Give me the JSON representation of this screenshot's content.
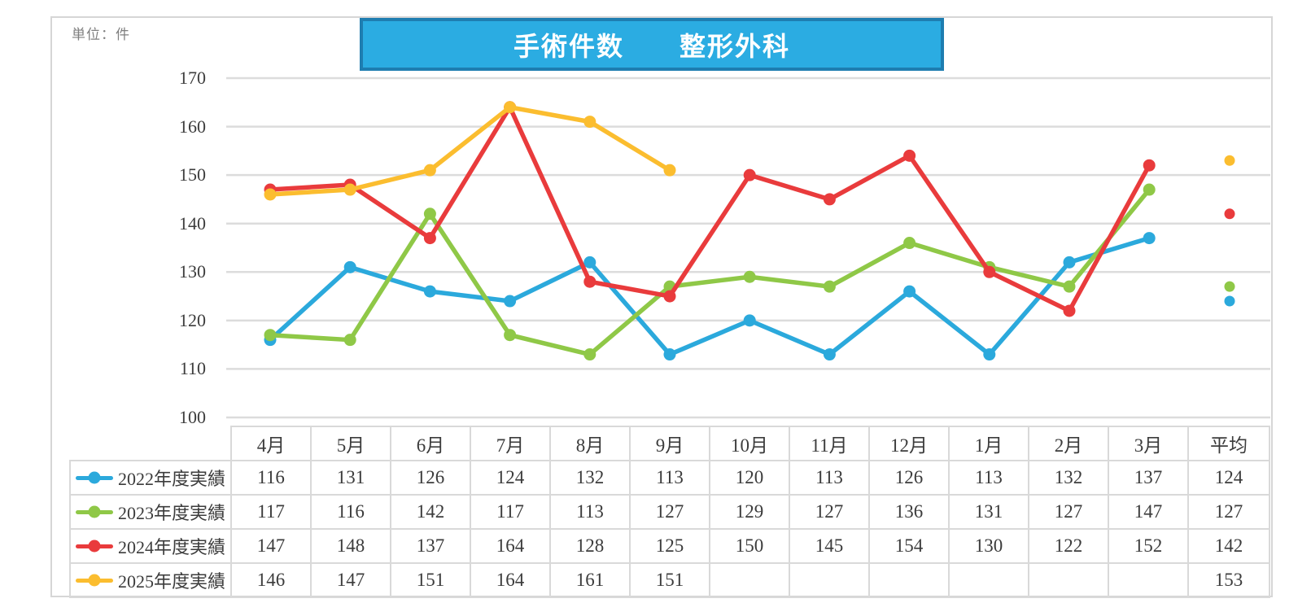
{
  "unit_label": "単位：件",
  "title": "手術件数　　整形外科",
  "colors": {
    "title_fill": "#2bace2",
    "title_border": "#1e7db0",
    "grid": "#dcdcdc",
    "axis_text": "#3c3c3c",
    "table_border": "#d9d9d9",
    "unit_text": "#7f7f7f",
    "series_blue": "#2ba9dc",
    "series_green": "#8fc847",
    "series_red": "#e93b3c",
    "series_yellow": "#fbbd2f"
  },
  "chart_data": {
    "type": "line",
    "title": "手術件数　整形外科",
    "unit": "件",
    "x": [
      "4月",
      "5月",
      "6月",
      "7月",
      "8月",
      "9月",
      "10月",
      "11月",
      "12月",
      "1月",
      "2月",
      "3月"
    ],
    "series": [
      {
        "name": "2022年度実績",
        "color": "#2ba9dc",
        "values": [
          116,
          131,
          126,
          124,
          132,
          113,
          120,
          113,
          126,
          113,
          132,
          137
        ],
        "average": 124
      },
      {
        "name": "2023年度実績",
        "color": "#8fc847",
        "values": [
          117,
          116,
          142,
          117,
          113,
          127,
          129,
          127,
          136,
          131,
          127,
          147
        ],
        "average": 127
      },
      {
        "name": "2024年度実績",
        "color": "#e93b3c",
        "values": [
          147,
          148,
          137,
          164,
          128,
          125,
          150,
          145,
          154,
          130,
          122,
          152
        ],
        "average": 142
      },
      {
        "name": "2025年度実績",
        "color": "#fbbd2f",
        "values": [
          146,
          147,
          151,
          164,
          161,
          151
        ],
        "average": 153
      }
    ],
    "ylim": [
      100,
      170
    ],
    "yticks": [
      100,
      110,
      120,
      130,
      140,
      150,
      160,
      170
    ],
    "grid": true,
    "average_column_label": "平均",
    "legend_position": "table-left-column"
  },
  "table": {
    "header": [
      "4月",
      "5月",
      "6月",
      "7月",
      "8月",
      "9月",
      "10月",
      "11月",
      "12月",
      "1月",
      "2月",
      "3月",
      "平均"
    ]
  }
}
